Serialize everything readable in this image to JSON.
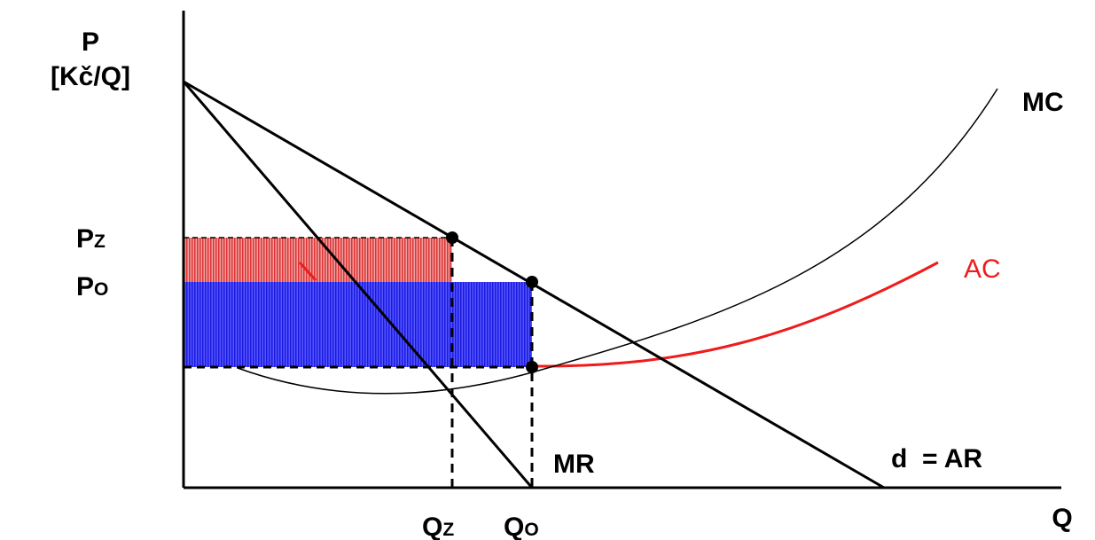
{
  "axes": {
    "y_label_line1": "P",
    "y_label_line2": "[Kč/Q]",
    "x_label": "Q"
  },
  "price_labels": {
    "pz_main": "P",
    "pz_sub": "Z",
    "po_main": "P",
    "po_sub": "O"
  },
  "quantity_labels": {
    "qz_main": "Q",
    "qz_sub": "Z",
    "qo_main": "Q",
    "qo_sub": "O"
  },
  "curves": {
    "mc": "MC",
    "ac": "AC",
    "mr": "MR",
    "demand": "d  = AR"
  },
  "colors": {
    "axis": "#000000",
    "ac_curve": "#ee1c1c",
    "loss_area": "#e03a3a",
    "profit_area": "#2b2bee"
  }
}
